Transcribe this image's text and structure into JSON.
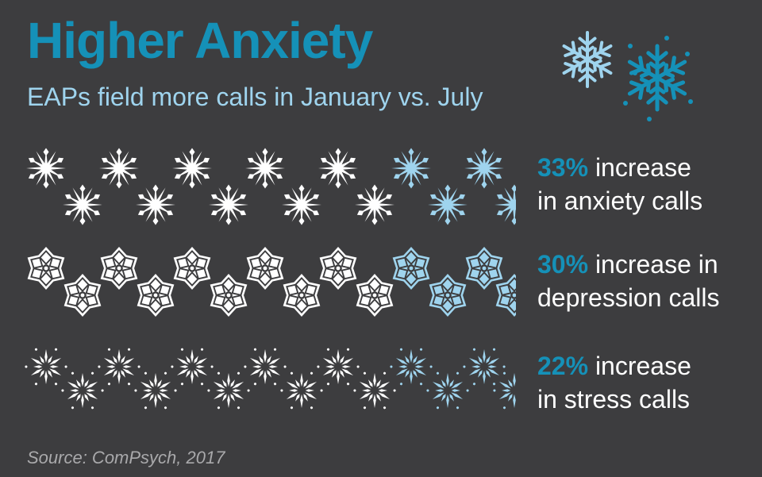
{
  "header": {
    "title": "Higher Anxiety",
    "subtitle": "EAPs field more calls in January vs. July"
  },
  "colors": {
    "background": "#3d3d3f",
    "accent": "#1591b8",
    "light_blue": "#9fd4ee",
    "white": "#ffffff"
  },
  "decor": {
    "icon": "snowflake-icon"
  },
  "chart_data": {
    "type": "pictograph",
    "series": [
      {
        "name": "anxiety calls",
        "value": 33,
        "pct_label": "33%",
        "line1_rest": " increase",
        "line2": "in anxiety calls",
        "icon": "snowflake-icon"
      },
      {
        "name": "depression calls",
        "value": 30,
        "pct_label": "30%",
        "line1_rest": " increase in",
        "line2": "depression calls",
        "icon": "snowflake-icon"
      },
      {
        "name": "stress calls",
        "value": 22,
        "pct_label": "22%",
        "line1_rest": " increase",
        "line2": "in stress calls",
        "icon": "snowflake-icon"
      }
    ],
    "unit": "%"
  },
  "source": "Source: ComPsych, 2017"
}
